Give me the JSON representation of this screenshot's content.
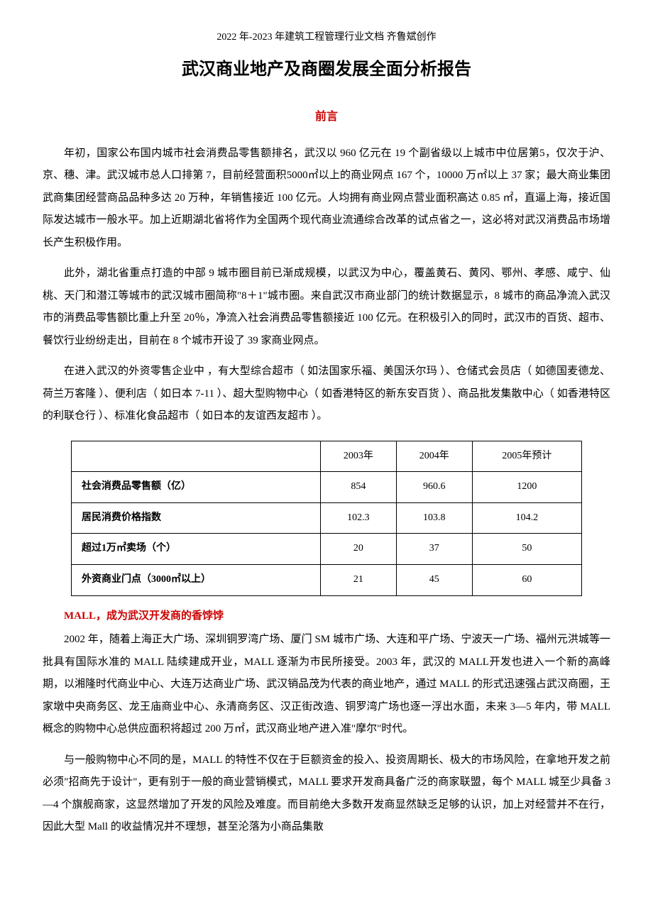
{
  "header_meta": "2022 年-2023 年建筑工程管理行业文档 齐鲁斌创作",
  "main_title": "武汉商业地产及商圈发展全面分析报告",
  "section_title": "前言",
  "paragraphs": {
    "p1": "年初，国家公布国内城市社会消费品零售额排名，武汉以 960 亿元在 19 个副省级以上城市中位居第5，仅次于沪、京、穗、津。武汉城市总人口排第 7，目前经营面积5000㎡以上的商业网点 167 个，10000 万㎡以上 37 家；最大商业集团武商集团经营商品品种多达 20 万种，年销售接近 100 亿元。人均拥有商业网点营业面积高达 0.85 ㎡，直逼上海，接近国际发达城市一般水平。加上近期湖北省将作为全国两个现代商业流通综合改革的试点省之一，这必将对武汉消费品市场增长产生积极作用。",
    "p2": "此外，湖北省重点打造的中部 9 城市圈目前已渐成规模，以武汉为中心，覆盖黄石、黄冈、鄂州、孝感、咸宁、仙桃、天门和潜江等城市的武汉城市圈简称\"8＋1\"城市圈。来自武汉市商业部门的统计数据显示，8 城市的商品净流入武汉市的消费品零售额比重上升至 20％，净流入社会消费品零售额接近 100 亿元。在积极引入的同时，武汉市的百货、超市、餐饮行业纷纷走出，目前在 8 个城市开设了 39 家商业网点。",
    "p3": "在进入武汉的外资零售企业中 ，有大型综合超市（ 如法国家乐福、美国沃尔玛 ）、仓储式会员店（ 如德国麦德龙、荷兰万客隆 ）、便利店（ 如日本 7-11 ）、超大型购物中心（ 如香港特区的新东安百货 ）、商品批发集散中心（ 如香港特区的利联仓行 ）、标准化食品超市（ 如日本的友谊西友超市 ）。"
  },
  "table": {
    "type": "table",
    "border_color": "#000000",
    "background_color": "#ffffff",
    "font_size": 14,
    "columns": [
      "",
      "2003年",
      "2004年",
      "2005年预计"
    ],
    "rows": [
      [
        "社会消费品零售额（亿）",
        "854",
        "960.6",
        "1200"
      ],
      [
        "居民消费价格指数",
        "102.3",
        "103.8",
        "104.2"
      ],
      [
        "超过1万㎡卖场（个）",
        "20",
        "37",
        "50"
      ],
      [
        "外资商业门点（3000㎡以上）",
        "21",
        "45",
        "60"
      ]
    ]
  },
  "subsection_title": "MALL，成为武汉开发商的香饽饽",
  "paragraphs2": {
    "p4": "2002 年，随着上海正大广场、深圳铜罗湾广场、厦门 SM 城市广场、大连和平广场、宁波天一广场、福州元洪城等一批具有国际水准的 MALL 陆续建成开业，MALL 逐渐为市民所接受。2003 年，武汉的 MALL开发也进入一个新的高峰期，以湘隆时代商业中心、大连万达商业广场、武汉销品茂为代表的商业地产，通过 MALL 的形式迅速强占武汉商圈，王家墩中央商务区、龙王庙商业中心、永清商务区、汉正街改造、铜罗湾广场也逐一浮出水面，未来 3—5 年内，带 MALL 概念的购物中心总供应面积将超过 200 万㎡，武汉商业地产进入准\"摩尔\"时代。",
    "p5": "与一般购物中心不同的是，MALL 的特性不仅在于巨额资金的投入、投资周期长、极大的市场风险，在拿地开发之前必须\"招商先于设计\"，更有别于一般的商业营销模式，MALL 要求开发商具备广泛的商家联盟，每个 MALL 城至少具备 3—4 个旗舰商家，这显然增加了开发的风险及难度。而目前绝大多数开发商显然缺乏足够的认识，加上对经营并不在行，因此大型 Mall 的收益情况并不理想，甚至沦落为小商品集散"
  },
  "colors": {
    "title_red": "#cc0000",
    "text_black": "#000000",
    "background": "#ffffff",
    "table_border": "#000000"
  },
  "typography": {
    "body_font": "SimSun",
    "title_font": "SimHei",
    "body_size_pt": 15,
    "main_title_size_pt": 24,
    "section_title_size_pt": 16,
    "table_size_pt": 14,
    "line_height": 2.1
  }
}
